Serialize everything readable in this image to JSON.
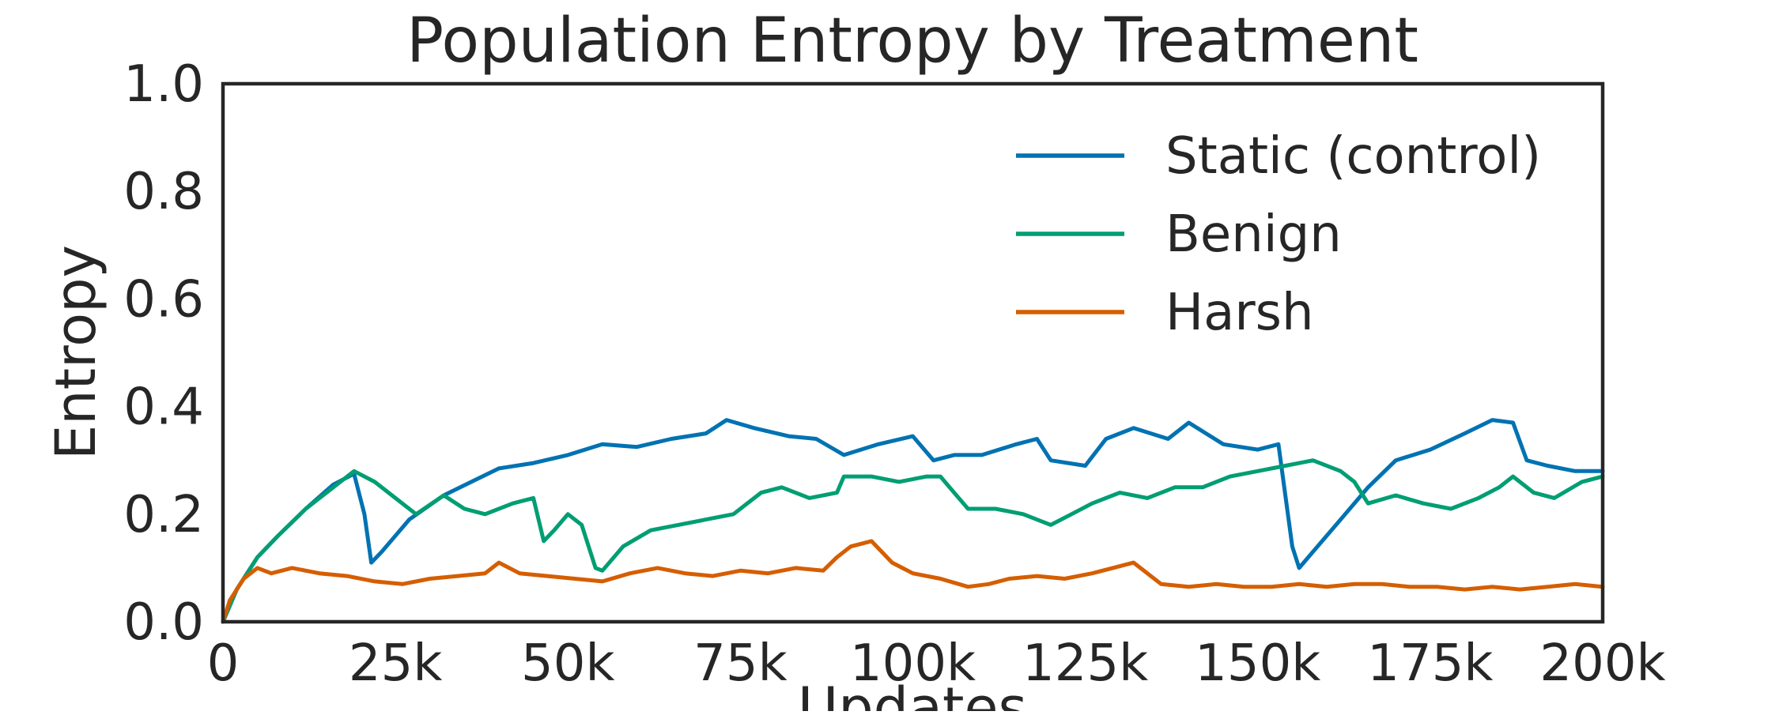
{
  "chart_data": {
    "type": "line",
    "title": "Population Entropy by Treatment",
    "xlabel": "Updates",
    "ylabel": "Entropy",
    "xlim": [
      0,
      200000
    ],
    "ylim": [
      0,
      1.0
    ],
    "x_ticks": [
      0,
      25000,
      50000,
      75000,
      100000,
      125000,
      150000,
      175000,
      200000
    ],
    "x_tick_labels": [
      "0",
      "25k",
      "50k",
      "75k",
      "100k",
      "125k",
      "150k",
      "175k",
      "200k"
    ],
    "y_ticks": [
      0,
      0.2,
      0.4,
      0.6,
      0.8,
      1.0
    ],
    "y_tick_labels": [
      "0.0",
      "0.2",
      "0.4",
      "0.6",
      "0.8",
      "1.0"
    ],
    "grid": false,
    "legend_position": "top-right",
    "series": [
      {
        "name": "Static (control)",
        "color": "#0072b2",
        "x": [
          0,
          2000,
          5000,
          8000,
          12000,
          16000,
          19000,
          20500,
          21500,
          23000,
          27000,
          32000,
          36000,
          40000,
          45000,
          50000,
          55000,
          60000,
          65000,
          70000,
          73000,
          77000,
          82000,
          86000,
          90000,
          95000,
          100000,
          103000,
          106000,
          110000,
          115000,
          118000,
          120000,
          125000,
          128000,
          132000,
          137000,
          140000,
          145000,
          150000,
          153000,
          155000,
          156000,
          158000,
          162000,
          166000,
          170000,
          175000,
          180000,
          184000,
          187000,
          189000,
          192000,
          196000,
          200000
        ],
        "y": [
          0,
          0.06,
          0.12,
          0.16,
          0.21,
          0.255,
          0.275,
          0.2,
          0.11,
          0.13,
          0.19,
          0.235,
          0.26,
          0.285,
          0.295,
          0.31,
          0.33,
          0.325,
          0.34,
          0.35,
          0.375,
          0.36,
          0.345,
          0.34,
          0.31,
          0.33,
          0.345,
          0.3,
          0.31,
          0.31,
          0.33,
          0.34,
          0.3,
          0.29,
          0.34,
          0.36,
          0.34,
          0.37,
          0.33,
          0.32,
          0.33,
          0.14,
          0.1,
          0.13,
          0.19,
          0.25,
          0.3,
          0.32,
          0.35,
          0.375,
          0.37,
          0.3,
          0.29,
          0.28,
          0.28
        ]
      },
      {
        "name": "Benign",
        "color": "#009e73",
        "x": [
          0,
          2000,
          5000,
          8000,
          12000,
          16000,
          19000,
          22000,
          25000,
          28000,
          32000,
          35000,
          38000,
          42000,
          45000,
          46500,
          48000,
          50000,
          52000,
          54000,
          55000,
          58000,
          62000,
          66000,
          70000,
          74000,
          78000,
          81000,
          85000,
          89000,
          90000,
          94000,
          98000,
          102000,
          104000,
          106000,
          108000,
          112000,
          116000,
          120000,
          123000,
          126000,
          130000,
          134000,
          138000,
          142000,
          146000,
          150000,
          154000,
          158000,
          162000,
          164000,
          166000,
          170000,
          174000,
          178000,
          182000,
          185000,
          187000,
          190000,
          193000,
          197000,
          200000
        ],
        "y": [
          0,
          0.06,
          0.12,
          0.16,
          0.21,
          0.25,
          0.28,
          0.26,
          0.23,
          0.2,
          0.235,
          0.21,
          0.2,
          0.22,
          0.23,
          0.15,
          0.17,
          0.2,
          0.18,
          0.1,
          0.095,
          0.14,
          0.17,
          0.18,
          0.19,
          0.2,
          0.24,
          0.25,
          0.23,
          0.24,
          0.27,
          0.27,
          0.26,
          0.27,
          0.27,
          0.24,
          0.21,
          0.21,
          0.2,
          0.18,
          0.2,
          0.22,
          0.24,
          0.23,
          0.25,
          0.25,
          0.27,
          0.28,
          0.29,
          0.3,
          0.28,
          0.26,
          0.22,
          0.235,
          0.22,
          0.21,
          0.23,
          0.25,
          0.27,
          0.24,
          0.23,
          0.26,
          0.27
        ]
      },
      {
        "name": "Harsh",
        "color": "#d55e00",
        "x": [
          0,
          1000,
          3000,
          5000,
          7000,
          10000,
          14000,
          18000,
          22000,
          26000,
          30000,
          34000,
          38000,
          40000,
          43000,
          47000,
          51000,
          55000,
          59000,
          63000,
          67000,
          71000,
          75000,
          79000,
          83000,
          87000,
          89000,
          91000,
          94000,
          97000,
          100000,
          104000,
          108000,
          111000,
          114000,
          118000,
          122000,
          126000,
          129000,
          132000,
          136000,
          140000,
          144000,
          148000,
          152000,
          156000,
          160000,
          164000,
          168000,
          172000,
          176000,
          180000,
          184000,
          188000,
          192000,
          196000,
          200000
        ],
        "y": [
          0,
          0.04,
          0.08,
          0.1,
          0.09,
          0.1,
          0.09,
          0.085,
          0.075,
          0.07,
          0.08,
          0.085,
          0.09,
          0.11,
          0.09,
          0.085,
          0.08,
          0.075,
          0.09,
          0.1,
          0.09,
          0.085,
          0.095,
          0.09,
          0.1,
          0.095,
          0.12,
          0.14,
          0.15,
          0.11,
          0.09,
          0.08,
          0.065,
          0.07,
          0.08,
          0.085,
          0.08,
          0.09,
          0.1,
          0.11,
          0.07,
          0.065,
          0.07,
          0.065,
          0.065,
          0.07,
          0.065,
          0.07,
          0.07,
          0.065,
          0.065,
          0.06,
          0.065,
          0.06,
          0.065,
          0.07,
          0.065
        ]
      }
    ]
  }
}
